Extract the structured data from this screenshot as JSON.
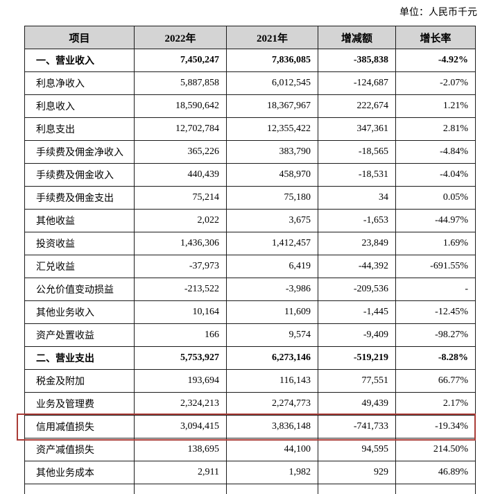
{
  "unit_label": "单位：人民币千元",
  "table": {
    "columns": [
      "项目",
      "2022年",
      "2021年",
      "增减额",
      "增长率"
    ],
    "rows": [
      {
        "label": "一、营业收入",
        "y2022": "7,450,247",
        "y2021": "7,836,085",
        "change": "-385,838",
        "rate": "-4.92%",
        "bold": true,
        "highlighted": false
      },
      {
        "label": "利息净收入",
        "y2022": "5,887,858",
        "y2021": "6,012,545",
        "change": "-124,687",
        "rate": "-2.07%",
        "bold": false,
        "highlighted": false
      },
      {
        "label": "利息收入",
        "y2022": "18,590,642",
        "y2021": "18,367,967",
        "change": "222,674",
        "rate": "1.21%",
        "bold": false,
        "highlighted": false
      },
      {
        "label": "利息支出",
        "y2022": "12,702,784",
        "y2021": "12,355,422",
        "change": "347,361",
        "rate": "2.81%",
        "bold": false,
        "highlighted": false
      },
      {
        "label": "手续费及佣金净收入",
        "y2022": "365,226",
        "y2021": "383,790",
        "change": "-18,565",
        "rate": "-4.84%",
        "bold": false,
        "highlighted": false
      },
      {
        "label": "手续费及佣金收入",
        "y2022": "440,439",
        "y2021": "458,970",
        "change": "-18,531",
        "rate": "-4.04%",
        "bold": false,
        "highlighted": false
      },
      {
        "label": "手续费及佣金支出",
        "y2022": "75,214",
        "y2021": "75,180",
        "change": "34",
        "rate": "0.05%",
        "bold": false,
        "highlighted": false
      },
      {
        "label": "其他收益",
        "y2022": "2,022",
        "y2021": "3,675",
        "change": "-1,653",
        "rate": "-44.97%",
        "bold": false,
        "highlighted": false
      },
      {
        "label": "投资收益",
        "y2022": "1,436,306",
        "y2021": "1,412,457",
        "change": "23,849",
        "rate": "1.69%",
        "bold": false,
        "highlighted": false
      },
      {
        "label": "汇兑收益",
        "y2022": "-37,973",
        "y2021": "6,419",
        "change": "-44,392",
        "rate": "-691.55%",
        "bold": false,
        "highlighted": false
      },
      {
        "label": "公允价值变动损益",
        "y2022": "-213,522",
        "y2021": "-3,986",
        "change": "-209,536",
        "rate": "-",
        "bold": false,
        "highlighted": false
      },
      {
        "label": "其他业务收入",
        "y2022": "10,164",
        "y2021": "11,609",
        "change": "-1,445",
        "rate": "-12.45%",
        "bold": false,
        "highlighted": false
      },
      {
        "label": "资产处置收益",
        "y2022": "166",
        "y2021": "9,574",
        "change": "-9,409",
        "rate": "-98.27%",
        "bold": false,
        "highlighted": false
      },
      {
        "label": "二、营业支出",
        "y2022": "5,753,927",
        "y2021": "6,273,146",
        "change": "-519,219",
        "rate": "-8.28%",
        "bold": true,
        "highlighted": false
      },
      {
        "label": "税金及附加",
        "y2022": "193,694",
        "y2021": "116,143",
        "change": "77,551",
        "rate": "66.77%",
        "bold": false,
        "highlighted": false
      },
      {
        "label": "业务及管理费",
        "y2022": "2,324,213",
        "y2021": "2,274,773",
        "change": "49,439",
        "rate": "2.17%",
        "bold": false,
        "highlighted": false
      },
      {
        "label": "信用减值损失",
        "y2022": "3,094,415",
        "y2021": "3,836,148",
        "change": "-741,733",
        "rate": "-19.34%",
        "bold": false,
        "highlighted": true
      },
      {
        "label": "资产减值损失",
        "y2022": "138,695",
        "y2021": "44,100",
        "change": "94,595",
        "rate": "214.50%",
        "bold": false,
        "highlighted": false
      },
      {
        "label": "其他业务成本",
        "y2022": "2,911",
        "y2021": "1,982",
        "change": "929",
        "rate": "46.89%",
        "bold": false,
        "highlighted": false
      }
    ]
  },
  "colors": {
    "header_bg": "#d4d4d4",
    "highlight_border": "#a93b36",
    "table_border": "#1a1a1a"
  }
}
